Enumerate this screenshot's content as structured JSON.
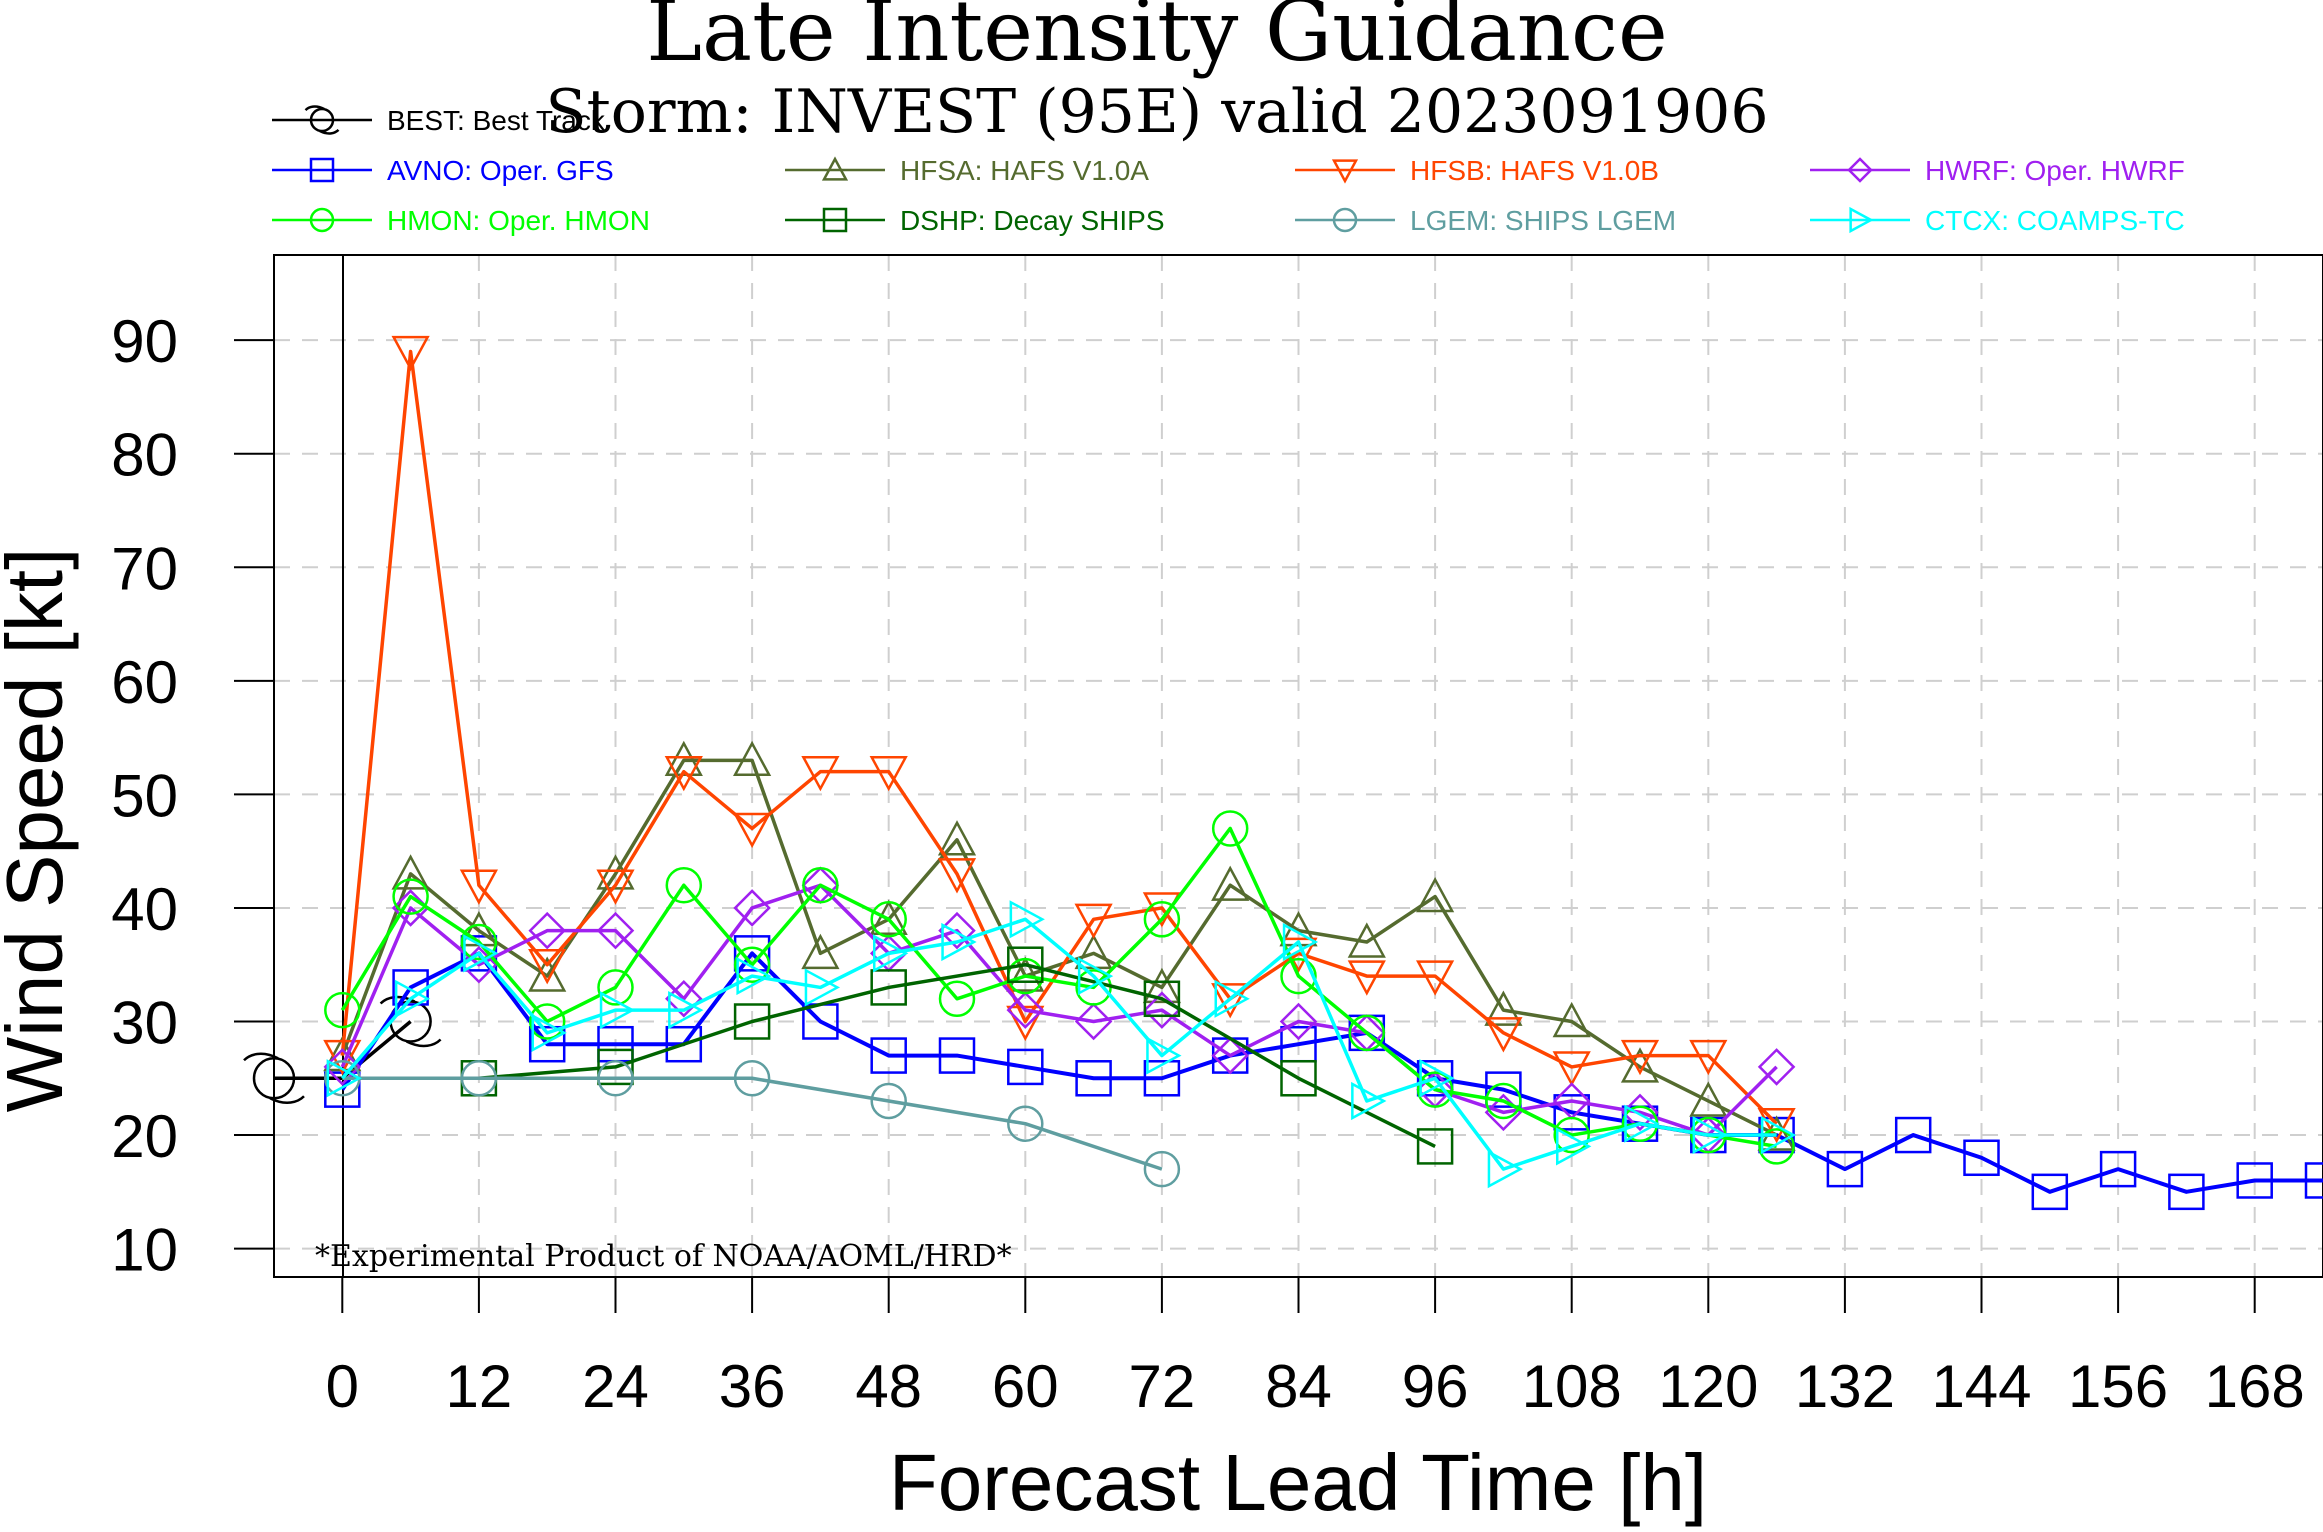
{
  "chart_data": {
    "type": "line",
    "title": "Late Intensity Guidance",
    "subtitle": "Storm: INVEST (95E) valid 2023091906",
    "xlabel": "Forecast Lead Time [h]",
    "ylabel": "Wind Speed [kt]",
    "note": "*Experimental Product of NOAA/AOML/HRD*",
    "xlim": [
      -6,
      174
    ],
    "ylim": [
      7.5,
      97.5
    ],
    "x_ticks": [
      0,
      12,
      24,
      36,
      48,
      60,
      72,
      84,
      96,
      108,
      120,
      132,
      144,
      156,
      168
    ],
    "y_ticks": [
      10,
      20,
      30,
      40,
      50,
      60,
      70,
      80,
      90
    ],
    "grid": true,
    "legend_position": "top",
    "series": [
      {
        "name": "BEST: Best Track",
        "key": "BEST",
        "color": "#000000",
        "marker": "hurricane",
        "x": [
          -6,
          0,
          6
        ],
        "y": [
          25,
          25,
          30
        ]
      },
      {
        "name": "AVNO: Oper. GFS",
        "key": "AVNO",
        "color": "#0000ff",
        "marker": "square",
        "x": [
          0,
          6,
          12,
          18,
          24,
          30,
          36,
          42,
          48,
          54,
          60,
          66,
          72,
          78,
          84,
          90,
          96,
          102,
          108,
          114,
          120,
          126,
          132,
          138,
          144,
          150,
          156,
          162,
          168,
          174
        ],
        "y": [
          24,
          33,
          36,
          28,
          28,
          28,
          36,
          30,
          27,
          27,
          26,
          25,
          25,
          27,
          28,
          29,
          25,
          24,
          22,
          21,
          20,
          20,
          17,
          20,
          18,
          15,
          17,
          15,
          16,
          16
        ]
      },
      {
        "name": "HFSA: HAFS V1.0A",
        "key": "HFSA",
        "color": "#556b2f",
        "marker": "triangle-up",
        "x": [
          0,
          6,
          12,
          18,
          24,
          30,
          36,
          42,
          48,
          54,
          60,
          66,
          72,
          78,
          84,
          90,
          96,
          102,
          108,
          114,
          120,
          126
        ],
        "y": [
          27,
          43,
          38,
          34,
          43,
          53,
          53,
          36,
          39,
          46,
          34,
          36,
          33,
          42,
          38,
          37,
          41,
          31,
          30,
          26,
          23,
          20
        ]
      },
      {
        "name": "HFSB: HAFS V1.0B",
        "key": "HFSB",
        "color": "#ff4500",
        "marker": "triangle-down",
        "x": [
          0,
          6,
          12,
          18,
          24,
          30,
          36,
          42,
          48,
          54,
          60,
          66,
          72,
          78,
          84,
          90,
          96,
          102,
          108,
          114,
          120,
          126
        ],
        "y": [
          27,
          89,
          42,
          35,
          42,
          52,
          47,
          52,
          52,
          43,
          30,
          39,
          40,
          32,
          36,
          34,
          34,
          29,
          26,
          27,
          27,
          21
        ]
      },
      {
        "name": "HWRF: Oper. HWRF",
        "key": "HWRF",
        "color": "#a020f0",
        "marker": "diamond",
        "x": [
          0,
          6,
          12,
          18,
          24,
          30,
          36,
          42,
          48,
          54,
          60,
          66,
          72,
          78,
          84,
          90,
          96,
          102,
          108,
          114,
          120,
          126
        ],
        "y": [
          26,
          40,
          35,
          38,
          38,
          32,
          40,
          42,
          36,
          38,
          31,
          30,
          31,
          27,
          30,
          29,
          24,
          22,
          23,
          22,
          20,
          26
        ]
      },
      {
        "name": "HMON: Oper. HMON",
        "key": "HMON",
        "color": "#00ff00",
        "marker": "circle",
        "x": [
          0,
          6,
          12,
          18,
          24,
          30,
          36,
          42,
          48,
          54,
          60,
          66,
          72,
          78,
          84,
          90,
          96,
          102,
          108,
          114,
          120,
          126
        ],
        "y": [
          31,
          41,
          37,
          30,
          33,
          42,
          35,
          42,
          39,
          32,
          34,
          33,
          39,
          47,
          34,
          29,
          24,
          23,
          20,
          21,
          20,
          19
        ]
      },
      {
        "name": "DSHP: Decay SHIPS",
        "key": "DSHP",
        "color": "#006400",
        "marker": "square",
        "x": [
          0,
          12,
          24,
          36,
          48,
          60,
          72,
          84,
          96
        ],
        "y": [
          25,
          25,
          26,
          30,
          33,
          35,
          32,
          25,
          19
        ]
      },
      {
        "name": "LGEM: SHIPS LGEM",
        "key": "LGEM",
        "color": "#5f9ea0",
        "marker": "circle",
        "x": [
          0,
          12,
          24,
          36,
          48,
          60,
          72
        ],
        "y": [
          25,
          25,
          25,
          25,
          23,
          21,
          17
        ]
      },
      {
        "name": "CTCX: COAMPS-TC",
        "key": "CTCX",
        "color": "#00ffff",
        "marker": "triangle-right",
        "x": [
          0,
          6,
          12,
          18,
          24,
          30,
          36,
          42,
          48,
          54,
          60,
          66,
          72,
          78,
          84,
          90,
          96,
          102,
          108,
          114,
          120,
          126
        ],
        "y": [
          25,
          32,
          36,
          29,
          31,
          31,
          34,
          33,
          36,
          37,
          39,
          34,
          27,
          32,
          37,
          23,
          25,
          17,
          19,
          21,
          20,
          20
        ]
      }
    ]
  }
}
